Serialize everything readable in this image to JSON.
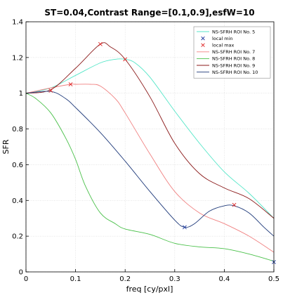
{
  "chart_data": {
    "type": "line",
    "title": "ST=0.04,Contrast Range=[0.1,0.9],esfW=10",
    "xlabel": "freq [cy/pxl]",
    "ylabel": "SFR",
    "xlim": [
      0,
      0.5
    ],
    "ylim": [
      0,
      1.4
    ],
    "xticks": [
      "0",
      "0.1",
      "0.2",
      "0.3",
      "0.4",
      "0.5"
    ],
    "yticks": [
      "0",
      "0.2",
      "0.4",
      "0.6",
      "0.8",
      "1",
      "1.2",
      "1.4"
    ],
    "grid": true,
    "legend_position": "top-right",
    "colors": {
      "roi5": "#55e6c8",
      "roi7": "#f08080",
      "roi8": "#49c049",
      "roi9": "#8b1a1a",
      "roi10": "#1f3a7a",
      "local_min": "#1f3a9f",
      "local_max": "#dd2222"
    },
    "series": [
      {
        "name": "NS-SFRH ROI No. 5",
        "color": "#55e6c8",
        "x": [
          0,
          0.05,
          0.1,
          0.15,
          0.18,
          0.2,
          0.22,
          0.25,
          0.3,
          0.35,
          0.4,
          0.45,
          0.5
        ],
        "y": [
          1.0,
          1.03,
          1.1,
          1.17,
          1.19,
          1.19,
          1.17,
          1.09,
          0.9,
          0.72,
          0.56,
          0.44,
          0.3
        ]
      },
      {
        "name": "NS-SFRH ROI No. 7",
        "color": "#f08080",
        "x": [
          0,
          0.05,
          0.09,
          0.1,
          0.13,
          0.15,
          0.18,
          0.2,
          0.25,
          0.3,
          0.35,
          0.4,
          0.45,
          0.5
        ],
        "y": [
          1.0,
          1.03,
          1.05,
          1.05,
          1.05,
          1.04,
          0.97,
          0.89,
          0.66,
          0.45,
          0.33,
          0.27,
          0.2,
          0.11
        ]
      },
      {
        "name": "NS-SFRH ROI No. 8",
        "color": "#49c049",
        "x": [
          0,
          0.02,
          0.05,
          0.08,
          0.1,
          0.12,
          0.15,
          0.18,
          0.2,
          0.25,
          0.3,
          0.35,
          0.4,
          0.45,
          0.5
        ],
        "y": [
          1.0,
          0.97,
          0.89,
          0.75,
          0.63,
          0.48,
          0.33,
          0.27,
          0.24,
          0.21,
          0.16,
          0.14,
          0.13,
          0.1,
          0.06
        ]
      },
      {
        "name": "NS-SFRH ROI No. 9",
        "color": "#8b1a1a",
        "x": [
          0,
          0.05,
          0.1,
          0.15,
          0.17,
          0.2,
          0.25,
          0.3,
          0.35,
          0.4,
          0.45,
          0.5
        ],
        "y": [
          1.0,
          1.02,
          1.14,
          1.275,
          1.26,
          1.19,
          0.98,
          0.72,
          0.55,
          0.47,
          0.41,
          0.3
        ]
      },
      {
        "name": "NS-SFRH ROI No. 10",
        "color": "#1f3a7a",
        "x": [
          0,
          0.05,
          0.08,
          0.1,
          0.15,
          0.2,
          0.25,
          0.3,
          0.32,
          0.34,
          0.37,
          0.4,
          0.42,
          0.45,
          0.48,
          0.5
        ],
        "y": [
          1.0,
          1.01,
          0.97,
          0.92,
          0.78,
          0.62,
          0.45,
          0.29,
          0.25,
          0.27,
          0.34,
          0.37,
          0.37,
          0.33,
          0.25,
          0.2
        ]
      }
    ],
    "markers": [
      {
        "name": "local min",
        "symbol": "x",
        "color": "#1f3a9f",
        "points": [
          [
            0.32,
            0.25
          ],
          [
            0.5,
            0.055
          ]
        ]
      },
      {
        "name": "local max",
        "symbol": "x",
        "color": "#dd2222",
        "points": [
          [
            0.05,
            1.015
          ],
          [
            0.09,
            1.05
          ],
          [
            0.15,
            1.275
          ],
          [
            0.2,
            1.19
          ],
          [
            0.42,
            0.375
          ]
        ]
      }
    ],
    "legend_order": [
      {
        "label": "NS-SFRH ROI No. 5",
        "kind": "line",
        "key": "roi5"
      },
      {
        "label": "local min",
        "kind": "marker",
        "key": "local_min"
      },
      {
        "label": "local max",
        "kind": "marker",
        "key": "local_max"
      },
      {
        "label": "NS-SFRH ROI No. 7",
        "kind": "line",
        "key": "roi7"
      },
      {
        "label": "NS-SFRH ROI No. 8",
        "kind": "line",
        "key": "roi8"
      },
      {
        "label": "NS-SFRH ROI No. 9",
        "kind": "line",
        "key": "roi9"
      },
      {
        "label": "NS-SFRH ROI No. 10",
        "kind": "line",
        "key": "roi10"
      }
    ]
  }
}
